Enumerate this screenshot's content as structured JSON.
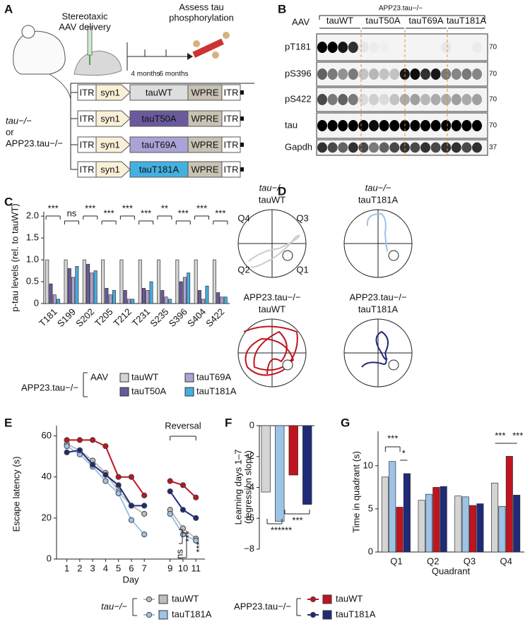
{
  "panel_labels": [
    "A",
    "B",
    "C",
    "D",
    "E",
    "F",
    "G"
  ],
  "panel_a": {
    "injection": [
      "Stereotaxic",
      "AAV delivery"
    ],
    "assess": [
      "Assess tau",
      "phosphorylation"
    ],
    "timeline": [
      "4 months",
      "6 months"
    ],
    "mice": [
      "tau−/−",
      "or",
      "APP23.tau−/−"
    ],
    "constructs": [
      [
        "ITR",
        "syn1",
        "tauWT",
        "WPRE",
        "ITR"
      ],
      [
        "ITR",
        "syn1",
        "tauT50A",
        "WPRE",
        "ITR"
      ],
      [
        "ITR",
        "syn1",
        "tauT69A",
        "WPRE",
        "ITR"
      ],
      [
        "ITR",
        "syn1",
        "tauT181A",
        "WPRE",
        "ITR"
      ]
    ]
  },
  "panel_b": {
    "group": "APP23.tau−/−",
    "aav": "AAV",
    "lanes": [
      "tauWT",
      "tauT50A",
      "tauT69A",
      "tauT181A"
    ],
    "rows": [
      "pT181",
      "pS396",
      "pS422",
      "tau",
      "Gapdh"
    ],
    "mw": [
      "70",
      "70",
      "70",
      "70",
      "37"
    ]
  },
  "panel_d": {
    "mice": [
      {
        "genotype": "tau−/−",
        "construct": "tauWT"
      },
      {
        "genotype": "tau−/−",
        "construct": "tauT181A"
      },
      {
        "genotype": "APP23.tau−/−",
        "construct": "tauWT"
      },
      {
        "genotype": "APP23.tau−/−",
        "construct": "tauT181A"
      }
    ],
    "quadrants": [
      "Q4",
      "Q3",
      "Q2",
      "Q1"
    ]
  },
  "chart_data": [
    {
      "type": "bar",
      "ylabel": "p-tau levels (rel. to tauWT)",
      "categories": [
        "T181",
        "S199",
        "S202",
        "T205",
        "T212",
        "T231",
        "S235",
        "S396",
        "S404",
        "S422"
      ],
      "series": [
        {
          "name": "tauWT",
          "color": "#d4d4d4",
          "values": [
            1.0,
            1.0,
            1.0,
            1.0,
            1.0,
            1.0,
            1.0,
            1.0,
            1.0,
            1.0
          ]
        },
        {
          "name": "tauT50A",
          "color": "#6a5a9c",
          "values": [
            0.45,
            0.8,
            0.9,
            0.35,
            0.3,
            0.35,
            0.3,
            0.5,
            0.3,
            0.25
          ]
        },
        {
          "name": "tauT69A",
          "color": "#aaa4d6",
          "values": [
            0.2,
            0.6,
            0.7,
            0.2,
            0.1,
            0.3,
            0.15,
            0.6,
            0.1,
            0.15
          ]
        },
        {
          "name": "tauT181A",
          "color": "#44b0e0",
          "values": [
            0.1,
            0.85,
            0.75,
            0.3,
            0.1,
            0.5,
            0.1,
            0.7,
            0.4,
            0.15
          ]
        }
      ],
      "ylim": [
        0,
        2.1
      ],
      "yticks": [
        0,
        0.5,
        {
          "value": 1,
          "label": "1.0"
        },
        1.5,
        {
          "value": 2,
          "label": "2.0"
        }
      ],
      "significance": [
        "***",
        "ns",
        "***",
        "***",
        "***",
        "***",
        "**",
        "***",
        "***",
        "***"
      ],
      "legend_group": "APP23.tau−/−",
      "legend_title": "AAV"
    },
    {
      "type": "line",
      "xlabel": "Day",
      "ylabel": "Escape latency (s)",
      "x": [
        1,
        2,
        3,
        4,
        5,
        6,
        7,
        8,
        9,
        10,
        11
      ],
      "xlim": [
        0.2,
        11.7
      ],
      "xticks": [
        1,
        2,
        3,
        4,
        5,
        6,
        7,
        9,
        10,
        11
      ],
      "series": [
        {
          "name": "tauWT",
          "color": "#bdbdbd",
          "values": [
            56,
            53,
            48,
            42,
            33,
            26,
            22,
            null,
            24,
            15,
            10
          ]
        },
        {
          "name": "tauT181A",
          "color": "#9dc3e6",
          "values": [
            55,
            51,
            45,
            38,
            32,
            19,
            12,
            null,
            22,
            12,
            9
          ]
        },
        {
          "name": "tauWT",
          "color": "#c0141e",
          "values": [
            58,
            58,
            58,
            55,
            40,
            40,
            31,
            null,
            38,
            36,
            30
          ]
        },
        {
          "name": "tauT181A",
          "color": "#1f2a78",
          "values": [
            52,
            53,
            46,
            41,
            36,
            26,
            26,
            null,
            33,
            24,
            20
          ]
        }
      ],
      "ylim": [
        0,
        65
      ],
      "yticks": [
        0,
        20,
        40,
        60
      ],
      "annotations": [
        "Reversal",
        "***",
        "ns",
        "***"
      ],
      "legend_groups": [
        "tau−/−",
        "APP23.tau−/−"
      ]
    },
    {
      "type": "bar",
      "ylabel": [
        "Learning days 1–7",
        "(regression slope)"
      ],
      "categories": [
        null,
        null,
        null,
        null
      ],
      "values": [
        -4.3,
        -6.2,
        -3.2,
        -5.1
      ],
      "colors": [
        "#d4d4d4",
        "#9dc3e6",
        "#c0141e",
        "#1f2a78"
      ],
      "ylim": [
        -8,
        0
      ],
      "yticks": [
        0,
        {
          "value": -2,
          "label": "−2"
        },
        {
          "value": -4,
          "label": "−4"
        },
        {
          "value": -6,
          "label": "−6"
        },
        {
          "value": -8,
          "label": "−8"
        }
      ],
      "annotations": [
        "******",
        "***"
      ]
    },
    {
      "type": "bar",
      "xlabel": "Quadrant",
      "ylabel": "Time in quadrant (s)",
      "categories": [
        "Q1",
        "Q2",
        "Q3",
        "Q4"
      ],
      "series": [
        {
          "color": "#d4d4d4",
          "values": [
            8.7,
            6.0,
            6.5,
            8.0
          ]
        },
        {
          "color": "#9dc3e6",
          "values": [
            10.5,
            6.7,
            6.4,
            5.3
          ]
        },
        {
          "color": "#c0141e",
          "values": [
            5.2,
            7.5,
            5.4,
            11.1
          ]
        },
        {
          "color": "#1f2a78",
          "values": [
            9.1,
            7.6,
            5.6,
            6.6
          ]
        }
      ],
      "ylim": [
        0,
        14
      ],
      "yticks": [
        0,
        5,
        10
      ],
      "annotations": [
        "***",
        "*",
        "***",
        "***"
      ]
    }
  ]
}
